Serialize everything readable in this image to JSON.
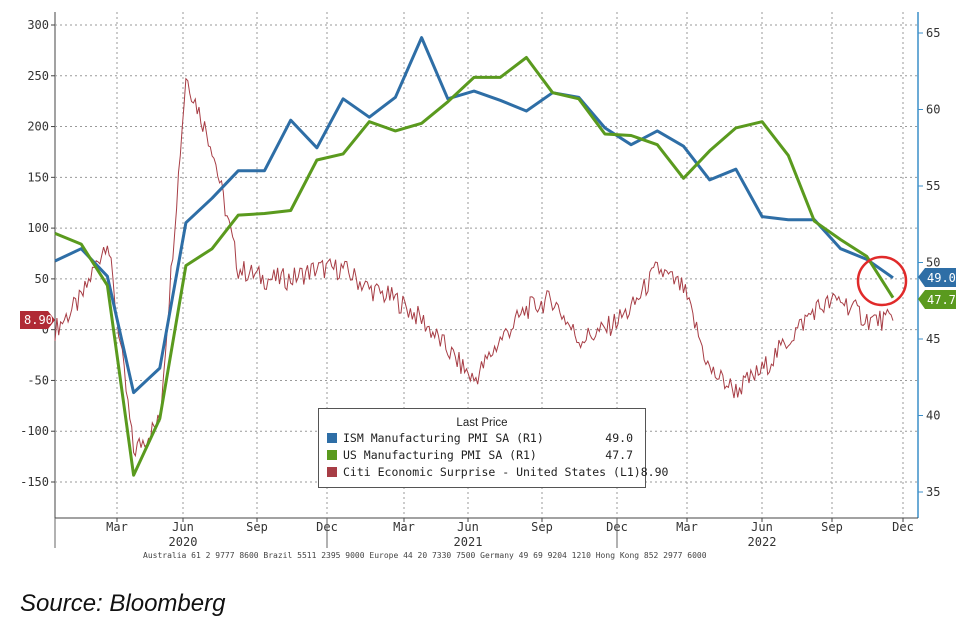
{
  "chart_data": {
    "type": "line",
    "left_axis": {
      "ticks": [
        "300",
        "250",
        "200",
        "150",
        "100",
        "50",
        "0",
        "-50",
        "-100",
        "-150"
      ],
      "range": [
        -180,
        300
      ]
    },
    "right_axis": {
      "ticks": [
        "65",
        "60",
        "55",
        "50",
        "45",
        "40",
        "35"
      ],
      "range": [
        33,
        66
      ]
    },
    "x_month_ticks": [
      "Mar",
      "Jun",
      "Sep",
      "Dec",
      "Mar",
      "Jun",
      "Sep",
      "Dec",
      "Mar",
      "Jun",
      "Sep",
      "Dec"
    ],
    "x_year_labels": [
      "2020",
      "2021",
      "2022"
    ],
    "legend_title": "Last Price",
    "series": [
      {
        "name": "ISM Manufacturing PMI SA (R1)",
        "axis": "right",
        "color": "#2e6ea6",
        "last": "49.0",
        "x": [
          0,
          1,
          2,
          3,
          4,
          5,
          6,
          7,
          8,
          9,
          10,
          11,
          12,
          13,
          14,
          15,
          16,
          17,
          18,
          19,
          20,
          21,
          22,
          23,
          24,
          25,
          26,
          27,
          28,
          29,
          30,
          31,
          32,
          33,
          34
        ],
        "values": [
          50.1,
          50.9,
          49.1,
          41.5,
          43.1,
          52.6,
          54.2,
          56.0,
          56.0,
          59.3,
          57.5,
          60.7,
          59.5,
          60.8,
          64.7,
          60.7,
          61.2,
          60.6,
          59.9,
          61.1,
          60.8,
          58.8,
          57.7,
          58.6,
          57.6,
          55.4,
          56.1,
          53.0,
          52.8,
          52.8,
          50.9,
          50.2,
          49.0,
          null,
          null
        ],
        "note": "ISM line ends at last price label"
      },
      {
        "name": "US Manufacturing PMI SA (R1)",
        "axis": "right",
        "color": "#5a9a1e",
        "last": "47.7",
        "x": [
          0,
          1,
          2,
          3,
          4,
          5,
          6,
          7,
          8,
          9,
          10,
          11,
          12,
          13,
          14,
          15,
          16,
          17,
          18,
          19,
          20,
          21,
          22,
          23,
          24,
          25,
          26,
          27,
          28,
          29,
          30,
          31,
          32,
          33,
          34
        ],
        "values": [
          51.9,
          51.2,
          48.5,
          36.1,
          39.8,
          49.8,
          50.9,
          53.1,
          53.2,
          53.4,
          56.7,
          57.1,
          59.2,
          58.6,
          59.1,
          60.5,
          62.1,
          62.1,
          63.4,
          61.1,
          60.7,
          58.4,
          58.3,
          57.7,
          55.5,
          57.3,
          58.8,
          59.2,
          57.0,
          52.7,
          51.5,
          50.4,
          47.7,
          null,
          null
        ],
        "note": "US PMI line ends at last price label"
      },
      {
        "name": "Citi Economic Surprise - United States (L1)",
        "axis": "left",
        "color": "#a73d45",
        "last": "8.90",
        "x": [
          0,
          1,
          2,
          3,
          4,
          5,
          6,
          7,
          8,
          9,
          10,
          11,
          12,
          13,
          14,
          15,
          16,
          17,
          18,
          19,
          20,
          21,
          22,
          23,
          24,
          25,
          26,
          27,
          28,
          29,
          30,
          31,
          32
        ],
        "values": [
          0,
          30,
          90,
          -120,
          -90,
          250,
          180,
          60,
          50,
          50,
          60,
          60,
          40,
          30,
          10,
          -20,
          -50,
          -10,
          20,
          30,
          -10,
          0,
          20,
          60,
          40,
          -40,
          -60,
          -40,
          -10,
          20,
          30,
          10,
          8.9
        ]
      }
    ]
  },
  "right_labels": {
    "ism": "49.0",
    "us": "47.7"
  },
  "left_label": "8.90",
  "footer_note": "Australia 61 2 9777 8600 Brazil 5511 2395 9000 Europe 44 20 7330 7500 Germany 49 69 9204 1210 Hong Kong 852 2977 6000",
  "source_caption": "Source: Bloomberg"
}
